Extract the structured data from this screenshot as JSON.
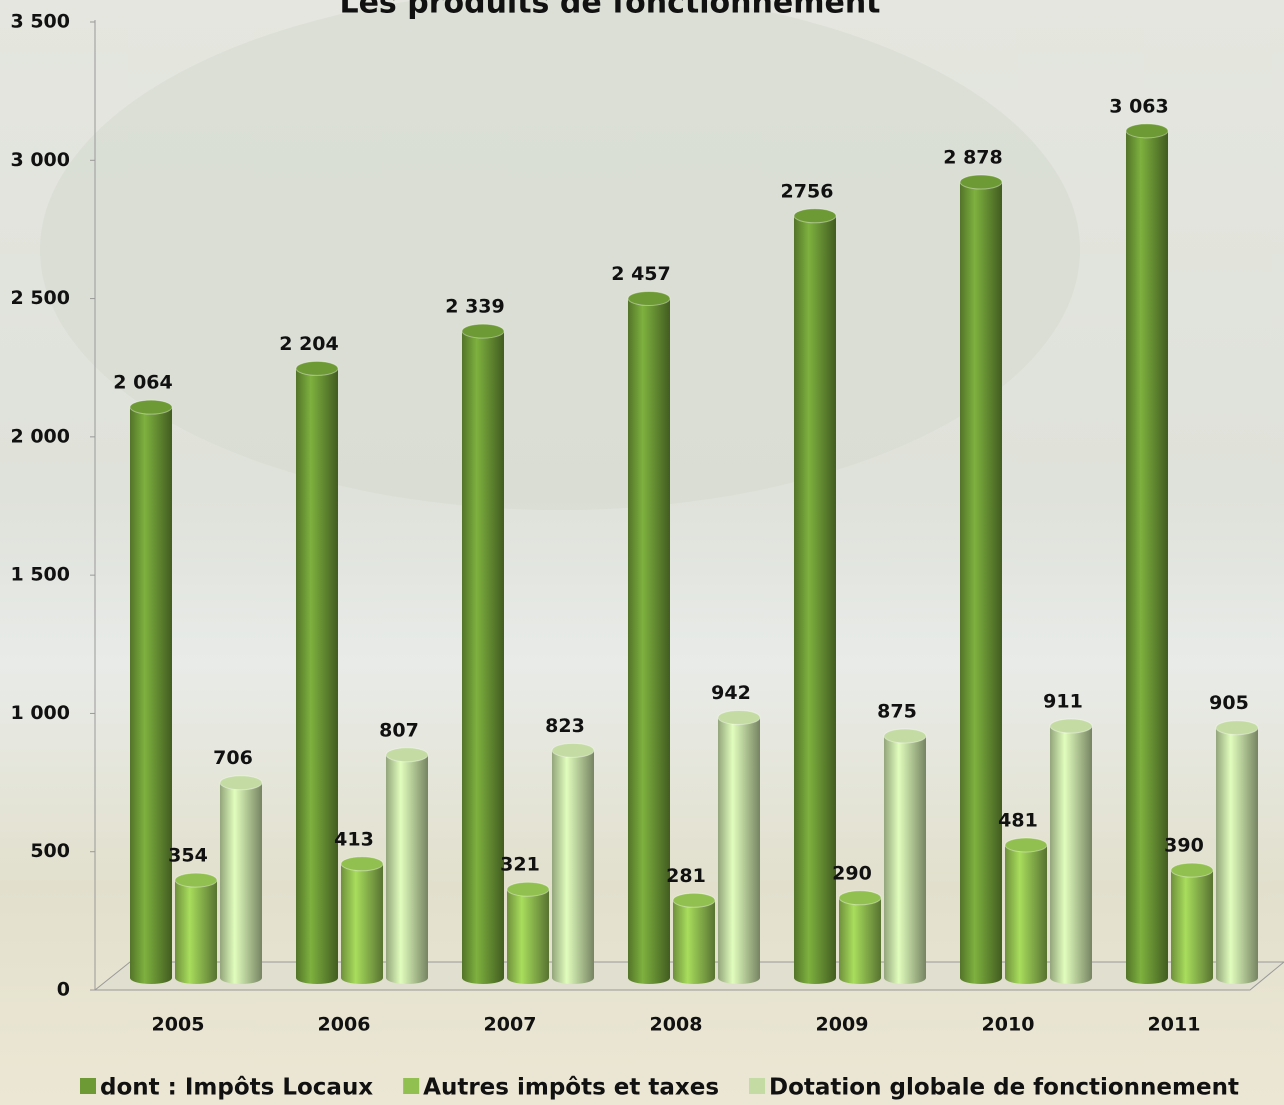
{
  "chart_data": {
    "type": "bar",
    "title": "Les produits de fonctionnement",
    "categories": [
      "2005",
      "2006",
      "2007",
      "2008",
      "2009",
      "2010",
      "2011"
    ],
    "series": [
      {
        "name": "dont : Impôts Locaux",
        "color": "#6e9a36",
        "values": [
          2064,
          2204,
          2339,
          2457,
          2756,
          2878,
          3063
        ],
        "value_labels": [
          "2 064",
          "2 204",
          "2 339",
          "2 457",
          "2756",
          "2 878",
          "3 063"
        ]
      },
      {
        "name": "Autres impôts et taxes",
        "color": "#92c050",
        "values": [
          354,
          413,
          321,
          281,
          290,
          481,
          390
        ]
      },
      {
        "name": "Dotation globale de fonctionnement",
        "color": "#c4dca4",
        "values": [
          706,
          807,
          823,
          942,
          875,
          911,
          905
        ]
      }
    ],
    "ylim": [
      0,
      3500
    ],
    "yticks": [
      0,
      500,
      {
        "value": 1000,
        "label": "1 000"
      },
      {
        "value": 1500,
        "label": "1 500"
      },
      {
        "value": 2000,
        "label": "2 000"
      },
      {
        "value": 2500,
        "label": "2 500"
      },
      {
        "value": 3000,
        "label": "3 000"
      },
      {
        "value": 3500,
        "label": "3 500"
      }
    ],
    "grid": false,
    "legend": "bottom"
  }
}
